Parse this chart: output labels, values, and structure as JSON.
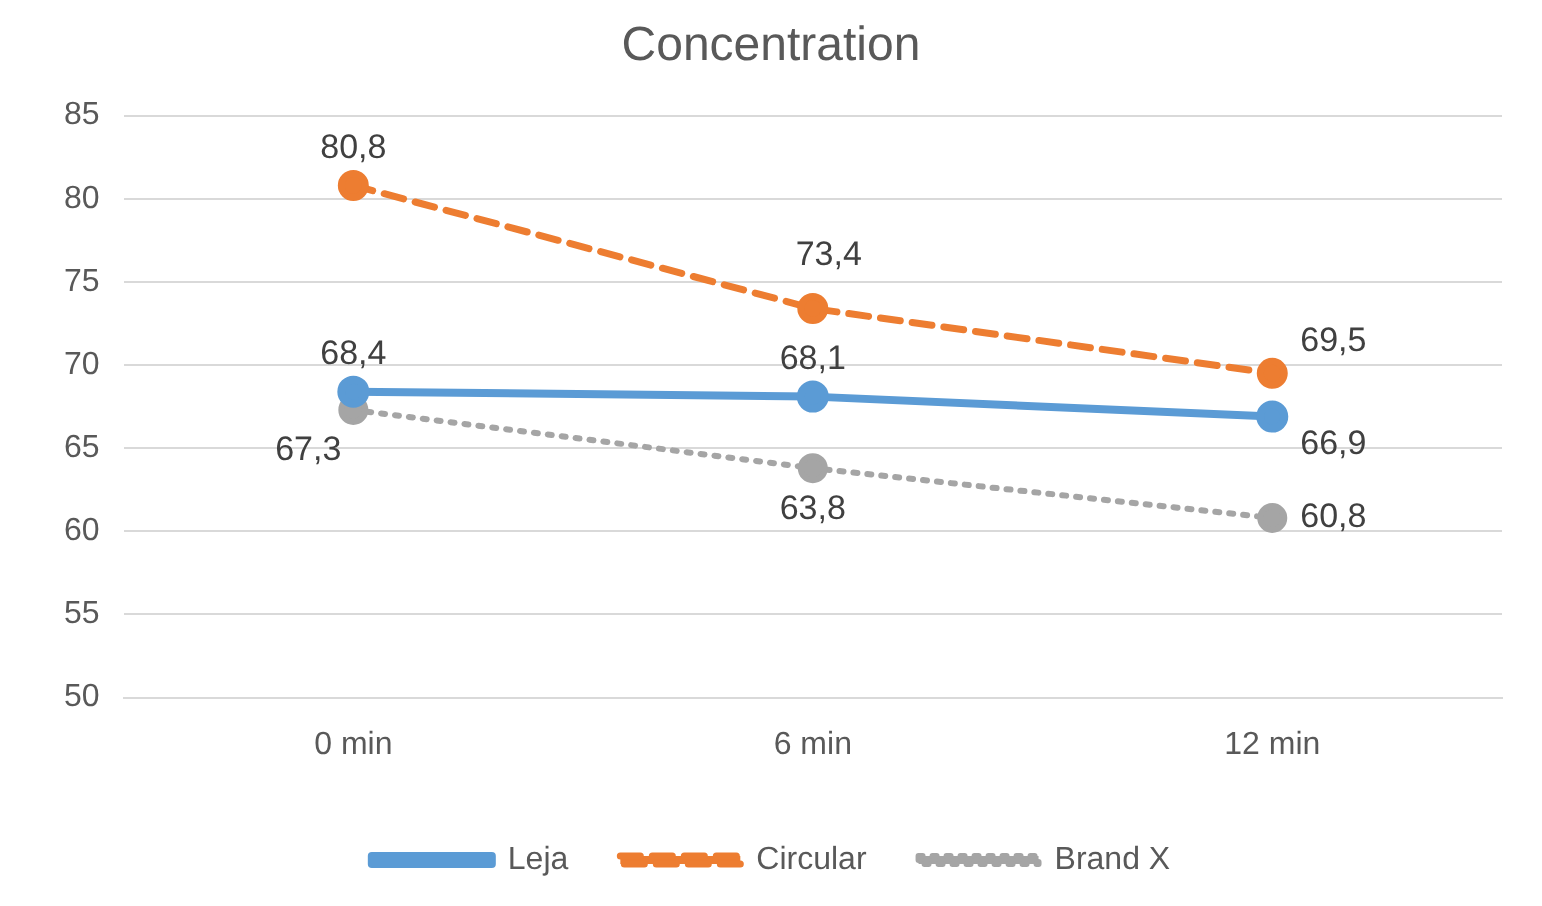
{
  "chart_data": {
    "type": "line",
    "title": "Concentration",
    "categories": [
      "0 min",
      "6 min",
      "12 min"
    ],
    "series": [
      {
        "name": "Leja",
        "color": "#5b9bd5",
        "values": [
          68.4,
          68.1,
          66.9
        ],
        "value_labels": [
          "68,4",
          "68,1",
          "66,9"
        ],
        "line_style": "solid"
      },
      {
        "name": "Circular",
        "color": "#ed7d31",
        "values": [
          80.8,
          73.4,
          69.5
        ],
        "value_labels": [
          "80,8",
          "73,4",
          "69,5"
        ],
        "line_style": "dashed"
      },
      {
        "name": "Brand X",
        "color": "#a5a5a5",
        "values": [
          67.3,
          63.8,
          60.8
        ],
        "value_labels": [
          "67,3",
          "63,8",
          "60,8"
        ],
        "line_style": "dotted"
      }
    ],
    "ylim": [
      50,
      85
    ],
    "yticks": [
      50,
      55,
      60,
      65,
      70,
      75,
      80,
      85
    ],
    "grid": "y",
    "legend": "bottom",
    "marker": "circle"
  }
}
